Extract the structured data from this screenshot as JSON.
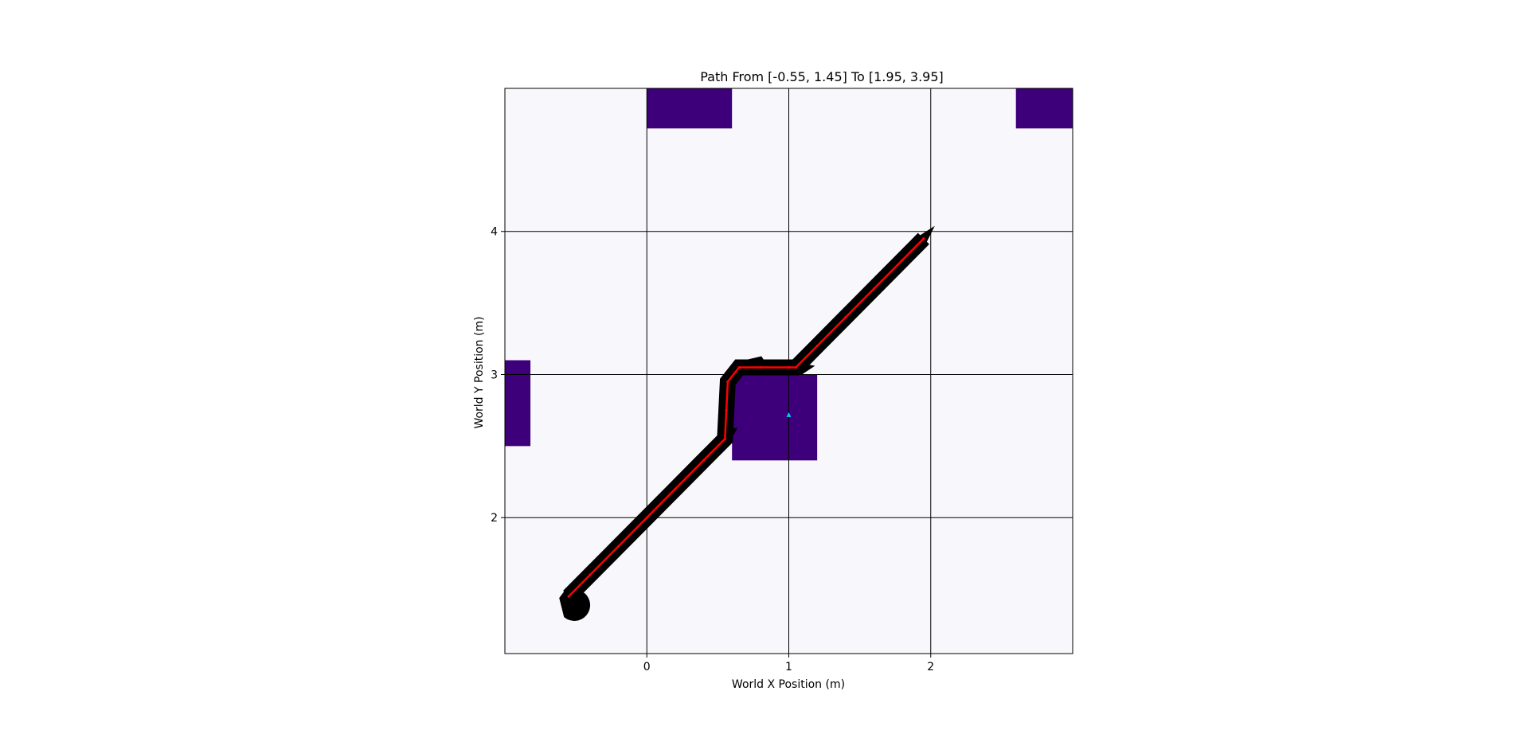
{
  "chart_data": {
    "type": "scatter",
    "title": "Path From [-0.55, 1.45] To [1.95, 3.95]",
    "xlabel": "World X Position (m)",
    "ylabel": "World Y Position (m)",
    "xlim": [
      -1.0,
      3.0
    ],
    "ylim": [
      1.05,
      5.0
    ],
    "xticks": [
      0,
      1,
      2
    ],
    "yticks": [
      2,
      3,
      4
    ],
    "grid": true,
    "colors": {
      "background": "#f8f8fc",
      "obstacle": "#3d007a",
      "path": "#ff0000",
      "heading": "#000000",
      "goal_marker": "#00c8ff"
    },
    "obstacles": [
      {
        "x0": 0.0,
        "x1": 0.6,
        "y0": 4.72,
        "y1": 5.0
      },
      {
        "x0": 2.6,
        "x1": 3.0,
        "y0": 4.72,
        "y1": 5.0
      },
      {
        "x0": -1.0,
        "x1": -0.82,
        "y0": 2.5,
        "y1": 3.1
      },
      {
        "x0": 0.6,
        "x1": 1.2,
        "y0": 2.4,
        "y1": 3.0
      }
    ],
    "path": {
      "name": "",
      "x": [
        -0.55,
        -0.4,
        -0.2,
        0.0,
        0.2,
        0.4,
        0.55,
        0.56,
        0.57,
        0.65,
        0.8,
        1.0,
        1.05,
        1.2,
        1.4,
        1.6,
        1.8,
        1.95
      ],
      "y": [
        1.45,
        1.6,
        1.8,
        2.0,
        2.2,
        2.4,
        2.55,
        2.75,
        2.95,
        3.05,
        3.05,
        3.05,
        3.05,
        3.2,
        3.4,
        3.6,
        3.8,
        3.95
      ]
    },
    "goal_marker": {
      "x": 1.0,
      "y": 2.72
    }
  }
}
